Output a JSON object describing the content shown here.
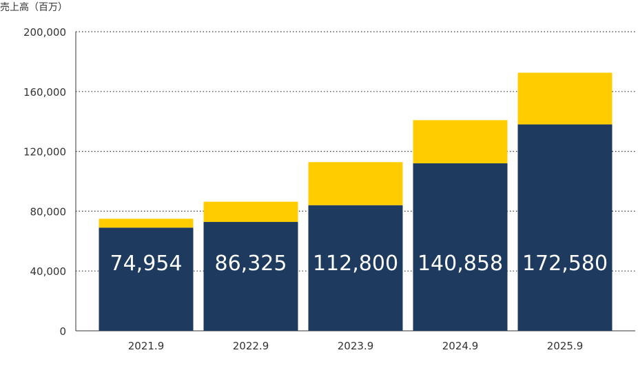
{
  "chart_data": {
    "type": "bar",
    "stacked": true,
    "ylabel": "売上高（百万）",
    "categories": [
      "2021.9",
      "2022.9",
      "2023.9",
      "2024.9",
      "2025.9"
    ],
    "series": [
      {
        "values": [
          69000,
          72800,
          84000,
          112000,
          138000
        ]
      },
      {
        "values": [
          5954,
          13525,
          28800,
          28858,
          34580
        ]
      }
    ],
    "totals": [
      74954,
      86325,
      112800,
      140858,
      172580
    ],
    "total_labels": [
      "74,954",
      "86,325",
      "112,800",
      "140,858",
      "172,580"
    ],
    "yticks": [
      0,
      40000,
      80000,
      120000,
      160000,
      200000
    ],
    "ytick_labels": [
      "0",
      "40,000",
      "80,000",
      "120,000",
      "160,000",
      "200,000"
    ],
    "ylim": [
      0,
      200000
    ],
    "grid": true
  },
  "colors": {
    "bottom_series": "#1e3a5f",
    "top_series": "#ffcc00",
    "value_label": "#ffffff",
    "axis": "#333333",
    "grid": "#333333"
  }
}
